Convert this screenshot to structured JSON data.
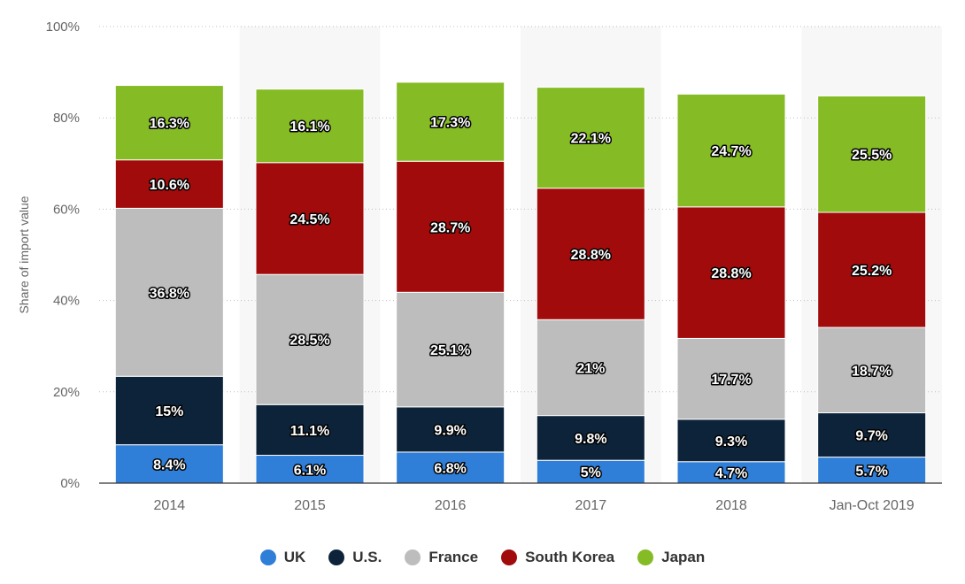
{
  "chart_data": {
    "type": "bar",
    "stacked": true,
    "ylabel": "Share of import value",
    "ylim": [
      0,
      100
    ],
    "yticks": [
      "0%",
      "20%",
      "40%",
      "60%",
      "80%",
      "100%"
    ],
    "grid": true,
    "legend_position": "bottom-center",
    "categories": [
      "2014",
      "2015",
      "2016",
      "2017",
      "2018",
      "Jan-Oct 2019"
    ],
    "series": [
      {
        "name": "UK",
        "color": "#2f7ed8",
        "values": [
          8.4,
          6.1,
          6.8,
          5,
          4.7,
          5.7
        ],
        "labels": [
          "8.4%",
          "6.1%",
          "6.8%",
          "5%",
          "4.7%",
          "5.7%"
        ]
      },
      {
        "name": "U.S.",
        "color": "#0d233a",
        "values": [
          15,
          11.1,
          9.9,
          9.8,
          9.3,
          9.7
        ],
        "labels": [
          "15%",
          "11.1%",
          "9.9%",
          "9.8%",
          "9.3%",
          "9.7%"
        ]
      },
      {
        "name": "France",
        "color": "#bdbdbd",
        "values": [
          36.8,
          28.5,
          25.1,
          21,
          17.7,
          18.7
        ],
        "labels": [
          "36.8%",
          "28.5%",
          "25.1%",
          "21%",
          "17.7%",
          "18.7%"
        ]
      },
      {
        "name": "South Korea",
        "color": "#a20b0b",
        "values": [
          10.6,
          24.5,
          28.7,
          28.8,
          28.8,
          25.2
        ],
        "labels": [
          "10.6%",
          "24.5%",
          "28.7%",
          "28.8%",
          "28.8%",
          "25.2%"
        ]
      },
      {
        "name": "Japan",
        "color": "#85bb24",
        "values": [
          16.3,
          16.1,
          17.3,
          22.1,
          24.7,
          25.5
        ],
        "labels": [
          "16.3%",
          "16.1%",
          "17.3%",
          "22.1%",
          "24.7%",
          "25.5%"
        ]
      }
    ]
  }
}
